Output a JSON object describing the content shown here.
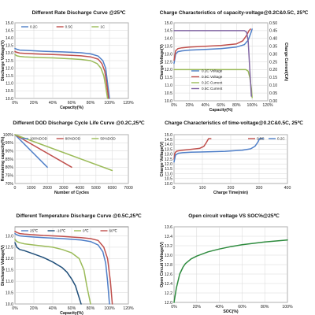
{
  "chart_data": [
    {
      "type": "line",
      "title": "Different Rate Discharge Curve @25℃",
      "xlabel": "Capacity(%)",
      "ylabel": "Discharge Voltage(V)",
      "xlim": [
        0,
        120
      ],
      "ylim": [
        10.0,
        15.0
      ],
      "xticks": [
        0,
        20,
        40,
        60,
        80,
        100,
        120
      ],
      "xtick_format": "percent",
      "yticks": [
        10.0,
        10.5,
        11.0,
        11.5,
        12.0,
        12.5,
        13.0,
        13.5,
        14.0,
        14.5,
        15.0
      ],
      "ytick_format": "1",
      "grid": true,
      "legend_position": "top",
      "series": [
        {
          "name": "0.2C",
          "color": "#4f7fc8",
          "x": [
            0,
            2,
            5,
            10,
            20,
            30,
            40,
            50,
            60,
            70,
            80,
            88,
            93,
            96,
            98,
            100
          ],
          "y": [
            13.3,
            13.25,
            13.2,
            13.18,
            13.15,
            13.12,
            13.1,
            13.08,
            13.05,
            13.02,
            12.95,
            12.8,
            12.5,
            12.0,
            11.0,
            10.0
          ]
        },
        {
          "name": "0.5C",
          "color": "#c0504d",
          "x": [
            0,
            2,
            5,
            10,
            20,
            30,
            40,
            50,
            60,
            70,
            80,
            88,
            92,
            95,
            97,
            99
          ],
          "y": [
            13.1,
            13.05,
            13.0,
            12.98,
            12.95,
            12.92,
            12.9,
            12.88,
            12.85,
            12.82,
            12.75,
            12.6,
            12.3,
            11.8,
            11.0,
            10.0
          ]
        },
        {
          "name": "1C",
          "color": "#9bbb59",
          "x": [
            0,
            2,
            5,
            10,
            20,
            30,
            40,
            50,
            60,
            70,
            80,
            87,
            91,
            94,
            96,
            98
          ],
          "y": [
            12.9,
            12.82,
            12.78,
            12.75,
            12.72,
            12.7,
            12.68,
            12.65,
            12.62,
            12.58,
            12.5,
            12.3,
            12.0,
            11.5,
            10.8,
            10.0
          ]
        }
      ]
    },
    {
      "type": "line",
      "title": "Charge Characteristics of capacity-voltage@0.2C&0.5C, 25℃",
      "xlabel": "Capacity(%)",
      "ylabel": "Charge Voltage(V)",
      "y2label": "Charge Current(CA)",
      "xlim": [
        0,
        120
      ],
      "ylim": [
        10.0,
        15.0
      ],
      "y2lim": [
        0.0,
        0.5
      ],
      "xticks": [
        0,
        20,
        40,
        60,
        80,
        100,
        120
      ],
      "xtick_format": "percent",
      "yticks": [
        10.0,
        10.5,
        11.0,
        11.5,
        12.0,
        12.5,
        13.0,
        13.5,
        14.0,
        14.5,
        15.0
      ],
      "ytick_format": "1",
      "y2ticks": [
        0.0,
        0.05,
        0.1,
        0.15,
        0.2,
        0.25,
        0.3,
        0.35,
        0.4,
        0.45,
        0.5
      ],
      "y2tick_format": "2",
      "grid": true,
      "legend_position": "lower-middle",
      "series": [
        {
          "name": "0.2C Voltage",
          "color": "#4f7fc8",
          "axis": "y",
          "x": [
            0,
            2,
            5,
            10,
            20,
            40,
            60,
            80,
            90,
            95,
            98,
            100
          ],
          "y": [
            12.4,
            13.0,
            13.15,
            13.2,
            13.25,
            13.3,
            13.35,
            13.45,
            13.6,
            13.9,
            14.3,
            14.6
          ]
        },
        {
          "name": "0.5C Voltage",
          "color": "#c0504d",
          "axis": "y",
          "x": [
            0,
            2,
            5,
            10,
            20,
            40,
            60,
            80,
            88,
            93,
            96,
            98
          ],
          "y": [
            12.6,
            13.2,
            13.35,
            13.4,
            13.45,
            13.5,
            13.55,
            13.65,
            13.85,
            14.2,
            14.5,
            14.6
          ]
        },
        {
          "name": "0.2C Current",
          "color": "#9bbb59",
          "axis": "y2",
          "x": [
            0,
            85,
            92,
            95,
            97,
            99,
            100
          ],
          "y": [
            0.2,
            0.2,
            0.2,
            0.19,
            0.15,
            0.08,
            0.02
          ]
        },
        {
          "name": "0.5C Current",
          "color": "#8064a2",
          "axis": "y2",
          "x": [
            0,
            85,
            90,
            93,
            95,
            97,
            99
          ],
          "y": [
            0.45,
            0.45,
            0.45,
            0.44,
            0.38,
            0.2,
            0.03
          ]
        }
      ]
    },
    {
      "type": "line",
      "title": "Different DOD Discharge Cycle Life Curve @0.2C,25℃",
      "xlabel": "Number of Cycles",
      "ylabel": "Remaining capacity(%)",
      "xlim": [
        0,
        7000
      ],
      "ylim": [
        70,
        100
      ],
      "xticks": [
        0,
        1000,
        2000,
        3000,
        4000,
        5000,
        6000,
        7000
      ],
      "xtick_format": "0",
      "yticks": [
        70,
        75,
        80,
        85,
        90,
        95,
        100
      ],
      "ytick_format": "percent",
      "grid": true,
      "legend_position": "top",
      "series": [
        {
          "name": "100%DOD",
          "color": "#4f7fc8",
          "x": [
            0,
            2000
          ],
          "y": [
            100,
            80
          ]
        },
        {
          "name": "80%DOD",
          "color": "#c0504d",
          "x": [
            0,
            3500
          ],
          "y": [
            100,
            80
          ]
        },
        {
          "name": "50%DOD",
          "color": "#9bbb59",
          "x": [
            0,
            6000
          ],
          "y": [
            100,
            78
          ]
        }
      ]
    },
    {
      "type": "line",
      "title": "Charge Characteristics of time-voltage@0.2C&0.5C, 25℃",
      "xlabel": "Charge Time(min)",
      "ylabel": "Charge Voltage(V)",
      "xlim": [
        0,
        400
      ],
      "ylim": [
        10.0,
        15.0
      ],
      "xticks": [
        0,
        100,
        200,
        300,
        400
      ],
      "xtick_format": "0",
      "yticks": [
        10.0,
        10.5,
        11.0,
        11.5,
        12.0,
        12.5,
        13.0,
        13.5,
        14.0,
        14.5,
        15.0
      ],
      "ytick_format": "1",
      "grid": true,
      "legend_position": "top-right",
      "series": [
        {
          "name": "0.5C",
          "color": "#c0504d",
          "x": [
            0,
            3,
            8,
            15,
            30,
            60,
            90,
            105,
            112,
            118,
            122,
            130
          ],
          "y": [
            12.5,
            13.1,
            13.3,
            13.35,
            13.4,
            13.5,
            13.6,
            13.8,
            14.1,
            14.4,
            14.6,
            14.6
          ]
        },
        {
          "name": "0.2C",
          "color": "#4f7fc8",
          "x": [
            0,
            5,
            15,
            30,
            60,
            120,
            180,
            240,
            270,
            285,
            295,
            302,
            315
          ],
          "y": [
            12.2,
            12.9,
            13.1,
            13.15,
            13.2,
            13.25,
            13.3,
            13.4,
            13.55,
            13.8,
            14.2,
            14.6,
            14.6
          ]
        }
      ]
    },
    {
      "type": "line",
      "title": "Different Temperature Discharge Curve @0.5C,25℃",
      "xlabel": "Capacity(%)",
      "ylabel": "Discharge Voltage(V)",
      "xlim": [
        0,
        120
      ],
      "ylim": [
        10.0,
        13.4
      ],
      "xticks": [
        0,
        20,
        40,
        60,
        80,
        100,
        120
      ],
      "xtick_format": "percent",
      "yticks": [
        10.0,
        10.5,
        11.0,
        11.5,
        12.0,
        12.5,
        13.0
      ],
      "ytick_format": "1",
      "grid": true,
      "legend_position": "top",
      "series": [
        {
          "name": "25℃",
          "color": "#4f7fc8",
          "x": [
            0,
            2,
            5,
            10,
            20,
            30,
            40,
            50,
            60,
            70,
            80,
            88,
            93,
            96,
            98,
            100
          ],
          "y": [
            13.1,
            13.05,
            13.0,
            12.98,
            12.95,
            12.92,
            12.9,
            12.88,
            12.85,
            12.82,
            12.75,
            12.6,
            12.3,
            11.8,
            11.0,
            10.0
          ]
        },
        {
          "name": "-10℃",
          "color": "#1f4e79",
          "x": [
            0,
            2,
            5,
            10,
            20,
            30,
            40,
            50,
            55,
            60,
            64,
            67,
            70
          ],
          "y": [
            12.7,
            12.5,
            12.4,
            12.35,
            12.2,
            12.05,
            11.85,
            11.6,
            11.4,
            11.1,
            10.8,
            10.4,
            10.0
          ]
        },
        {
          "name": "0℃",
          "color": "#9bbb59",
          "x": [
            0,
            2,
            5,
            10,
            20,
            30,
            40,
            50,
            60,
            68,
            73,
            76,
            80
          ],
          "y": [
            12.85,
            12.75,
            12.7,
            12.65,
            12.6,
            12.55,
            12.5,
            12.4,
            12.25,
            12.0,
            11.5,
            10.8,
            10.0
          ]
        },
        {
          "name": "60℃",
          "color": "#c0504d",
          "x": [
            0,
            2,
            5,
            10,
            20,
            30,
            40,
            50,
            60,
            70,
            80,
            88,
            94,
            98,
            101,
            103
          ],
          "y": [
            13.2,
            13.15,
            13.1,
            13.08,
            13.05,
            13.02,
            13.0,
            12.98,
            12.95,
            12.92,
            12.88,
            12.8,
            12.5,
            12.0,
            11.0,
            10.0
          ]
        }
      ]
    },
    {
      "type": "line",
      "title": "Open circuit voltage VS SOC%@25℃",
      "xlabel": "SOC(%)",
      "ylabel": "Open Circuit Voltage(V)",
      "xlim": [
        0,
        100
      ],
      "ylim": [
        12.0,
        13.6
      ],
      "xticks": [
        0,
        20,
        40,
        60,
        80,
        100
      ],
      "xtick_format": "percent",
      "yticks": [
        12.0,
        12.2,
        12.4,
        12.6,
        12.8,
        13.0,
        13.2,
        13.4,
        13.6
      ],
      "ytick_format": "1",
      "grid": true,
      "legend_position": "none",
      "series": [
        {
          "name": "",
          "color": "#2e8b3e",
          "x": [
            0,
            2,
            5,
            8,
            10,
            15,
            20,
            30,
            40,
            50,
            60,
            70,
            80,
            90,
            100
          ],
          "y": [
            12.0,
            12.3,
            12.6,
            12.75,
            12.82,
            12.92,
            12.98,
            13.07,
            13.13,
            13.18,
            13.22,
            13.25,
            13.28,
            13.3,
            13.32
          ]
        }
      ]
    }
  ]
}
